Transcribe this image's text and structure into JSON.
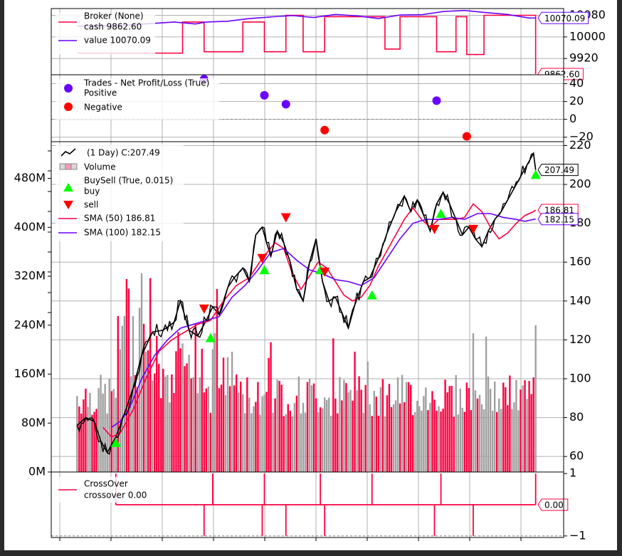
{
  "chart_data": [
    {
      "type": "line",
      "panel": "broker",
      "legend": {
        "placement": "top-left",
        "entries": [
          "Broker (None)",
          "cash 9862.60",
          "value 10070.09"
        ]
      },
      "y_ticks": [
        "10080",
        "10000",
        "9920"
      ],
      "ylim": [
        9860,
        10105
      ],
      "grid": true,
      "last_value_tags": [
        {
          "label": "10070.09",
          "value": 10070.09,
          "color": "#6a00ff"
        },
        {
          "label": "9862.60",
          "value": 9862.6,
          "color": "#ff0040"
        }
      ],
      "series": [
        {
          "name": "cash",
          "color": "#ff0040",
          "step": true,
          "x": [
            0,
            49,
            59,
            77,
            87,
            97,
            105,
            115,
            143,
            150,
            167,
            176,
            181,
            189,
            204,
            213
          ],
          "values": [
            9940,
            10055,
            9945,
            10055,
            9945,
            10080,
            9945,
            10075,
            9955,
            10075,
            9945,
            10075,
            9935,
            10080,
            10080,
            9862.6
          ]
        },
        {
          "name": "value",
          "color": "#6a00ff",
          "x": [
            0,
            20,
            45,
            55,
            60,
            70,
            80,
            90,
            100,
            110,
            120,
            130,
            140,
            150,
            160,
            170,
            180,
            190,
            200,
            210,
            213
          ],
          "values": [
            10040,
            10042,
            10055,
            10048,
            10055,
            10058,
            10068,
            10074,
            10079,
            10072,
            10083,
            10078,
            10068,
            10081,
            10082,
            10094,
            10098,
            10090,
            10083,
            10070,
            10070.09
          ]
        }
      ]
    },
    {
      "type": "scatter",
      "panel": "trades",
      "legend": {
        "placement": "top-left",
        "entries": [
          "Trades - Net Profit/Loss (True)",
          "Positive",
          "Negative"
        ]
      },
      "y_ticks": [
        "40",
        "20",
        "0",
        "−20"
      ],
      "ylim": [
        -25,
        50
      ],
      "grid": true,
      "positive": {
        "color": "#6a00ff",
        "x": [
          59,
          87,
          97,
          167
        ],
        "values": [
          45,
          27,
          17,
          21
        ]
      },
      "negative": {
        "color": "#ff0000",
        "x": [
          115,
          181
        ],
        "values": [
          -12,
          -19
        ]
      }
    },
    {
      "type": "line",
      "panel": "price",
      "title": "(1 Day) C:207.49",
      "legend": {
        "placement": "top-left",
        "entries": [
          "(1 Day) C:207.49",
          "Volume",
          "BuySell (True, 0.015)",
          "buy",
          "sell",
          "SMA (50) 186.81",
          "SMA (100) 182.15"
        ]
      },
      "y_ticks": [
        "220",
        "200",
        "180",
        "160",
        "140",
        "120",
        "100",
        "80",
        "60"
      ],
      "ylim": [
        52,
        222
      ],
      "volume_ticks": [
        "480M",
        "400M",
        "320M",
        "240M",
        "160M",
        "80M",
        "0M"
      ],
      "volume_lim": [
        0,
        540
      ],
      "grid": true,
      "last_value_tags": [
        {
          "label": "207.49",
          "value": 207.49,
          "color": "#000000"
        },
        {
          "label": "186.81",
          "value": 186.81,
          "color": "#ff0040"
        },
        {
          "label": "182.15",
          "value": 182.15,
          "color": "#6a00ff"
        }
      ],
      "series": [
        {
          "name": "close",
          "color": "#000000",
          "x": [
            0,
            4,
            8,
            11,
            14,
            18,
            22,
            26,
            30,
            35,
            40,
            45,
            48,
            52,
            56,
            60,
            63,
            66,
            70,
            73,
            77,
            80,
            83,
            86,
            88,
            90,
            93,
            96,
            99,
            102,
            105,
            108,
            111,
            114,
            117,
            120,
            123,
            126,
            129,
            133,
            136,
            140,
            144,
            148,
            152,
            155,
            158,
            161,
            164,
            167,
            170,
            173,
            176,
            179,
            182,
            185,
            188,
            191,
            194,
            197,
            200,
            203,
            206,
            209,
            212,
            213
          ],
          "values": [
            76,
            80,
            78,
            68,
            62,
            70,
            82,
            95,
            112,
            124,
            125,
            129,
            140,
            125,
            122,
            130,
            137,
            133,
            147,
            152,
            157,
            150,
            174,
            178,
            170,
            163,
            176,
            170,
            160,
            146,
            140,
            160,
            172,
            150,
            140,
            142,
            134,
            126,
            138,
            150,
            152,
            162,
            175,
            186,
            194,
            186,
            192,
            184,
            176,
            190,
            196,
            190,
            182,
            174,
            178,
            172,
            168,
            176,
            182,
            186,
            192,
            198,
            204,
            210,
            216,
            207.49
          ]
        },
        {
          "name": "SMA (50)",
          "color": "#ff0040",
          "x": [
            12,
            16,
            20,
            26,
            32,
            38,
            44,
            50,
            56,
            62,
            68,
            74,
            80,
            86,
            92,
            96,
            100,
            104,
            108,
            112,
            116,
            120,
            124,
            128,
            132,
            136,
            140,
            144,
            148,
            152,
            156,
            160,
            164,
            168,
            172,
            176,
            180,
            184,
            188,
            192,
            196,
            200,
            204,
            208,
            212,
            213
          ],
          "values": [
            75,
            70,
            72,
            84,
            100,
            114,
            120,
            124,
            128,
            130,
            140,
            148,
            152,
            162,
            170,
            167,
            154,
            146,
            153,
            160,
            157,
            150,
            143,
            140,
            142,
            148,
            158,
            166,
            174,
            182,
            188,
            182,
            178,
            182,
            182,
            182,
            183,
            190,
            186,
            178,
            172,
            175,
            180,
            184,
            186,
            186.81
          ]
        },
        {
          "name": "SMA (100)",
          "color": "#6a00ff",
          "x": [
            16,
            20,
            24,
            30,
            36,
            42,
            48,
            54,
            60,
            66,
            72,
            78,
            84,
            90,
            96,
            102,
            108,
            114,
            120,
            126,
            132,
            138,
            144,
            150,
            156,
            162,
            168,
            174,
            180,
            186,
            192,
            198,
            204,
            208,
            212,
            213
          ],
          "values": [
            75,
            78,
            84,
            100,
            112,
            120,
            126,
            128,
            130,
            132,
            142,
            148,
            156,
            165,
            167,
            161,
            156,
            154,
            151,
            150,
            148,
            152,
            162,
            172,
            180,
            182,
            182,
            183,
            182,
            185,
            185,
            183,
            182,
            181,
            182,
            182.15
          ]
        }
      ],
      "buy_signals": {
        "color": "#00ff00",
        "x": [
          18,
          62,
          87,
          113,
          137,
          169,
          213
        ],
        "values": [
          67,
          121,
          156,
          156,
          143,
          185,
          205
        ]
      },
      "sell_signals": {
        "color": "#ff0000",
        "x": [
          59,
          86,
          97,
          115,
          166,
          184
        ],
        "values": [
          136,
          162,
          183,
          155,
          177,
          177
        ]
      },
      "volume": {
        "color_up": "#ff0040",
        "color_down": "#a0a0a0",
        "bar_count": 214
      }
    },
    {
      "type": "line",
      "panel": "crossover",
      "legend": {
        "placement": "top-left",
        "entries": [
          "CrossOver",
          "crossover 0.00"
        ]
      },
      "y_ticks": [
        "1",
        "−1"
      ],
      "ylim": [
        -1.05,
        1.05
      ],
      "grid": true,
      "last_value_tags": [
        {
          "label": "0.00",
          "value": 0,
          "color": "#ff0040"
        }
      ],
      "series": [
        {
          "name": "crossover",
          "color": "#ff0040",
          "spikes": [
            {
              "x": 18,
              "value": 1
            },
            {
              "x": 59,
              "value": -1
            },
            {
              "x": 63,
              "value": 1
            },
            {
              "x": 86,
              "value": -1
            },
            {
              "x": 87,
              "value": 1
            },
            {
              "x": 97,
              "value": -1
            },
            {
              "x": 113,
              "value": 1
            },
            {
              "x": 115,
              "value": -1
            },
            {
              "x": 137,
              "value": 1
            },
            {
              "x": 166,
              "value": -1
            },
            {
              "x": 169,
              "value": 1
            },
            {
              "x": 184,
              "value": -1
            },
            {
              "x": 213,
              "value": 1
            }
          ]
        }
      ]
    }
  ]
}
